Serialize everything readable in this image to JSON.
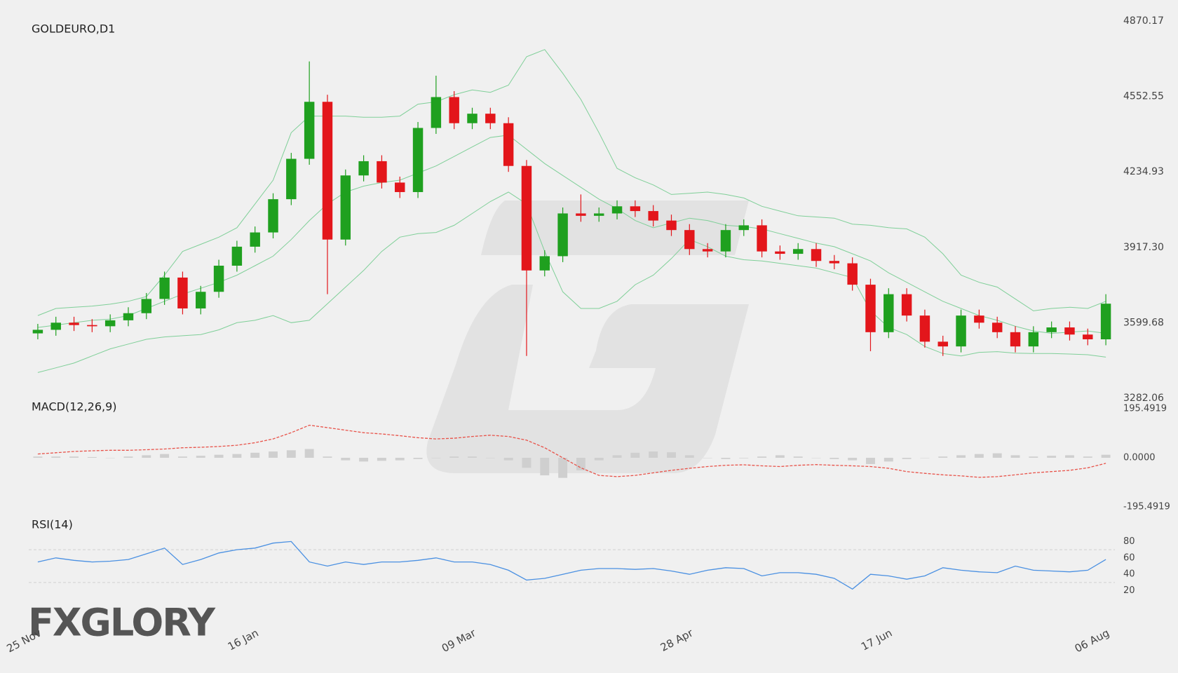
{
  "chart_data": [
    {
      "type": "candlestick",
      "title": "GOLDEURO,D1",
      "categories": [
        "25 Nov",
        null,
        null,
        null,
        null,
        null,
        null,
        null,
        null,
        null,
        null,
        null,
        "16 Jan",
        null,
        null,
        null,
        null,
        null,
        null,
        null,
        null,
        null,
        null,
        null,
        "09 Mar",
        null,
        null,
        null,
        null,
        null,
        null,
        null,
        null,
        null,
        null,
        null,
        "28 Apr",
        null,
        null,
        null,
        null,
        null,
        null,
        null,
        null,
        null,
        null,
        "17 Jun",
        null,
        null,
        null,
        null,
        null,
        null,
        null,
        null,
        null,
        null,
        null,
        "06 Aug"
      ],
      "open": [
        3555,
        3570,
        3600,
        3590,
        3585,
        3610,
        3640,
        3700,
        3790,
        3660,
        3730,
        3840,
        3920,
        3980,
        4120,
        4290,
        4530,
        3950,
        4220,
        4280,
        4190,
        4150,
        4420,
        4550,
        4440,
        4480,
        4440,
        4260,
        3820,
        3880,
        4060,
        4050,
        4060,
        4090,
        4070,
        4030,
        3990,
        3910,
        3900,
        3990,
        4010,
        3900,
        3890,
        3910,
        3860,
        3850,
        3760,
        3560,
        3720,
        3630,
        3520,
        3500,
        3630,
        3600,
        3560,
        3500,
        3560,
        3580,
        3550,
        3530
      ],
      "high": [
        3595,
        3625,
        3625,
        3615,
        3635,
        3665,
        3725,
        3815,
        3815,
        3755,
        3865,
        3945,
        4005,
        4145,
        4315,
        4700,
        4560,
        4245,
        4305,
        4305,
        4215,
        4445,
        4640,
        4575,
        4505,
        4505,
        4465,
        4285,
        3905,
        4085,
        4140,
        4085,
        4115,
        4115,
        4095,
        4055,
        4015,
        3935,
        4015,
        4035,
        4035,
        3925,
        3935,
        3935,
        3885,
        3875,
        3785,
        3745,
        3745,
        3655,
        3545,
        3655,
        3655,
        3625,
        3585,
        3585,
        3605,
        3605,
        3575,
        3720
      ],
      "low": [
        3530,
        3545,
        3565,
        3560,
        3560,
        3585,
        3615,
        3675,
        3635,
        3635,
        3705,
        3815,
        3895,
        3955,
        4095,
        4265,
        3720,
        3925,
        4195,
        4165,
        4125,
        4125,
        4395,
        4415,
        4415,
        4415,
        4235,
        3460,
        3795,
        3855,
        4025,
        4025,
        4035,
        4045,
        4005,
        3965,
        3885,
        3875,
        3875,
        3965,
        3875,
        3865,
        3865,
        3835,
        3825,
        3735,
        3480,
        3535,
        3605,
        3495,
        3460,
        3475,
        3575,
        3535,
        3475,
        3475,
        3535,
        3525,
        3505,
        3505
      ],
      "close": [
        3570,
        3600,
        3590,
        3585,
        3610,
        3640,
        3700,
        3790,
        3660,
        3730,
        3840,
        3920,
        3980,
        4120,
        4290,
        4530,
        3950,
        4220,
        4280,
        4190,
        4150,
        4420,
        4550,
        4440,
        4480,
        4440,
        4260,
        3820,
        3880,
        4060,
        4050,
        4060,
        4090,
        4070,
        4030,
        3990,
        3910,
        3900,
        3990,
        4010,
        3900,
        3890,
        3910,
        3860,
        3850,
        3760,
        3560,
        3720,
        3630,
        3520,
        3500,
        3630,
        3600,
        3560,
        3500,
        3560,
        3580,
        3550,
        3530,
        3680
      ],
      "up_color": "#1fa01f",
      "down_color": "#e3161b",
      "bands": {
        "color": "#7fcf98",
        "upper": [
          3630,
          3660,
          3665,
          3670,
          3678,
          3690,
          3710,
          3800,
          3900,
          3930,
          3960,
          4000,
          4100,
          4200,
          4400,
          4470,
          4470,
          4470,
          4465,
          4465,
          4470,
          4520,
          4530,
          4560,
          4580,
          4570,
          4600,
          4720,
          4750,
          4650,
          4540,
          4400,
          4250,
          4210,
          4180,
          4140,
          4145,
          4150,
          4140,
          4125,
          4090,
          4070,
          4050,
          4045,
          4040,
          4015,
          4010,
          4000,
          3995,
          3960,
          3890,
          3800,
          3770,
          3750,
          3700,
          3650,
          3660,
          3665,
          3660,
          3690
        ],
        "middle": [
          3580,
          3590,
          3600,
          3610,
          3615,
          3630,
          3660,
          3690,
          3720,
          3745,
          3770,
          3800,
          3840,
          3880,
          3950,
          4030,
          4100,
          4150,
          4175,
          4190,
          4200,
          4230,
          4260,
          4300,
          4340,
          4380,
          4390,
          4330,
          4270,
          4220,
          4170,
          4120,
          4080,
          4030,
          4000,
          4020,
          4040,
          4030,
          4010,
          4005,
          3995,
          3975,
          3955,
          3935,
          3920,
          3890,
          3860,
          3810,
          3770,
          3730,
          3690,
          3660,
          3630,
          3610,
          3585,
          3565,
          3555,
          3560,
          3565,
          3555
        ],
        "lower": [
          3390,
          3410,
          3430,
          3460,
          3490,
          3510,
          3530,
          3540,
          3545,
          3550,
          3570,
          3600,
          3610,
          3630,
          3600,
          3610,
          3680,
          3750,
          3820,
          3900,
          3960,
          3975,
          3980,
          4010,
          4060,
          4110,
          4150,
          4100,
          3900,
          3730,
          3660,
          3660,
          3690,
          3760,
          3800,
          3870,
          3950,
          3920,
          3880,
          3865,
          3860,
          3850,
          3840,
          3830,
          3810,
          3790,
          3650,
          3580,
          3550,
          3500,
          3470,
          3460,
          3475,
          3478,
          3472,
          3470,
          3470,
          3468,
          3465,
          3455
        ]
      },
      "ylim": [
        3282.06,
        4870.17
      ],
      "yticks": [
        3282.06,
        3599.68,
        {
          "value": 3917.3,
          "label": "3917.30"
        },
        4234.93,
        4552.55,
        4870.17
      ]
    },
    {
      "type": "macd",
      "title": "MACD(12,26,9)",
      "histogram": [
        5,
        5,
        5,
        3,
        0,
        5,
        10,
        15,
        5,
        8,
        12,
        15,
        20,
        25,
        30,
        35,
        5,
        -10,
        -15,
        -12,
        -10,
        -5,
        0,
        5,
        5,
        0,
        -10,
        -40,
        -70,
        -80,
        -50,
        -10,
        10,
        20,
        25,
        22,
        10,
        0,
        -5,
        -2,
        5,
        10,
        5,
        0,
        -5,
        -10,
        -25,
        -15,
        -5,
        0,
        5,
        10,
        15,
        18,
        10,
        5,
        8,
        10,
        5,
        12
      ],
      "macd": [
        15,
        20,
        25,
        28,
        30,
        30,
        32,
        35,
        40,
        42,
        45,
        50,
        60,
        75,
        100,
        130,
        120,
        110,
        100,
        95,
        88,
        80,
        75,
        78,
        85,
        90,
        85,
        70,
        40,
        0,
        -40,
        -70,
        -75,
        -70,
        -60,
        -50,
        -42,
        -35,
        -30,
        -28,
        -32,
        -35,
        -30,
        -27,
        -30,
        -32,
        -35,
        -42,
        -55,
        -62,
        -68,
        -72,
        -78,
        -75,
        -68,
        -60,
        -55,
        -50,
        -40,
        -22
      ],
      "histogram_color": "#cfcfcf",
      "line_color": "#e8534a",
      "ylim": [
        -195.4919,
        195.4919
      ],
      "yticks": [
        -195.4919,
        {
          "value": 0,
          "label": "0.0000"
        },
        195.4919
      ]
    },
    {
      "type": "line",
      "title": "RSI(14)",
      "values": [
        55,
        60,
        57,
        55,
        56,
        58,
        65,
        72,
        52,
        58,
        66,
        70,
        72,
        78,
        80,
        55,
        50,
        55,
        52,
        55,
        55,
        57,
        60,
        55,
        55,
        52,
        45,
        33,
        35,
        40,
        45,
        47,
        47,
        46,
        47,
        44,
        40,
        45,
        48,
        47,
        38,
        42,
        42,
        40,
        35,
        22,
        40,
        38,
        34,
        38,
        48,
        45,
        43,
        42,
        50,
        45,
        44,
        43,
        45,
        58
      ],
      "color": "#4a90e2",
      "levels": [
        30,
        70
      ],
      "ylim": [
        0,
        100
      ],
      "yticks": [
        20,
        40,
        60,
        80
      ]
    }
  ],
  "logo": "FXGLORY"
}
